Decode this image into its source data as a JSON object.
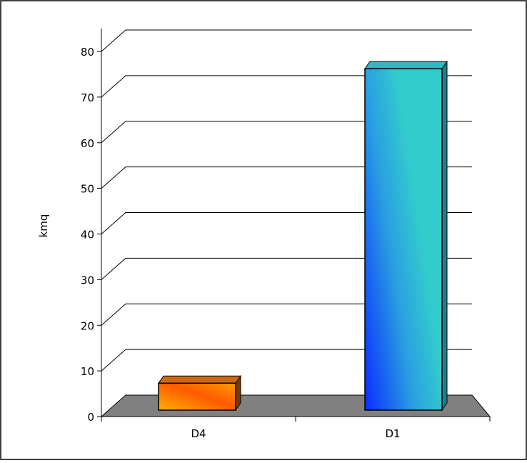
{
  "chart_data": {
    "type": "bar",
    "title": "",
    "xlabel": "",
    "ylabel": "kmq",
    "categories": [
      "D4",
      "D1"
    ],
    "values": [
      6,
      76
    ],
    "ylim": [
      0,
      80
    ],
    "yticks": [
      0,
      10,
      20,
      30,
      40,
      50,
      60,
      70,
      80
    ],
    "grid": true,
    "legend": "none",
    "colors": {
      "D4": [
        "#ff8c00",
        "#ff5a00"
      ],
      "D1": [
        "#33cccc",
        "#0a3cff"
      ],
      "floor": "#808080"
    }
  }
}
